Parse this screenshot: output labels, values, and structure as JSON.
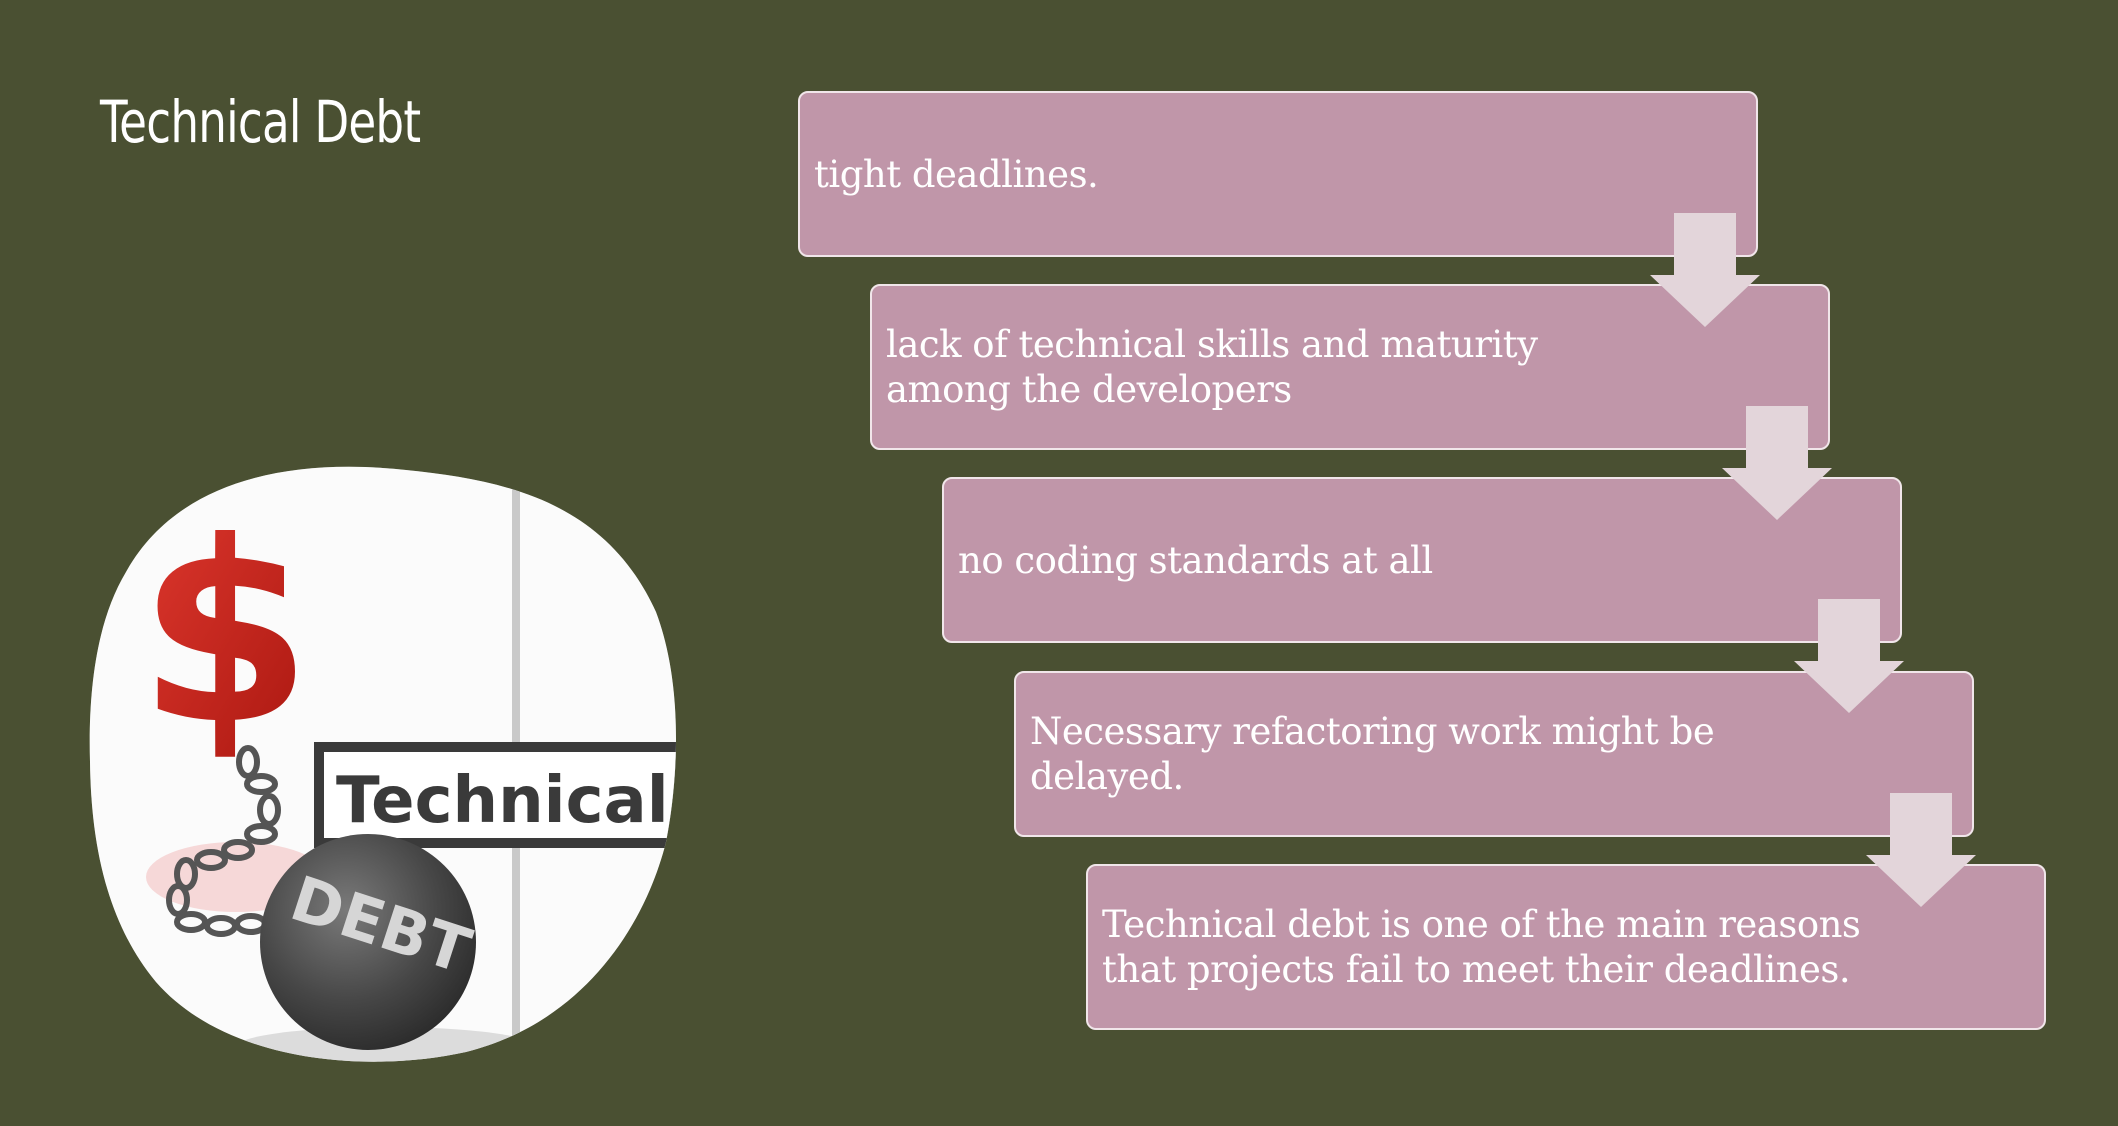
{
  "slide": {
    "title": "Technical Debt"
  },
  "illustration": {
    "sign_text": "Technical",
    "ball_text": "DEBT",
    "dollar_symbol": "$",
    "colors": {
      "dollar": "#c0201c",
      "sign_background": "#3a3a3a",
      "ball": "#4a4a4a"
    }
  },
  "steps": [
    {
      "text": "tight deadlines."
    },
    {
      "text": "lack of technical skills and maturity among the developers"
    },
    {
      "text": "no coding standards at all"
    },
    {
      "text": "Necessary refactoring work might be delayed."
    },
    {
      "text": "Technical debt is one of the main reasons that projects fail to meet their deadlines."
    }
  ],
  "colors": {
    "background": "#4a5032",
    "box_fill": "#c096a9",
    "box_border": "#f1e6ea",
    "arrow_fill": "#e3d5da",
    "text": "#ffffff"
  }
}
